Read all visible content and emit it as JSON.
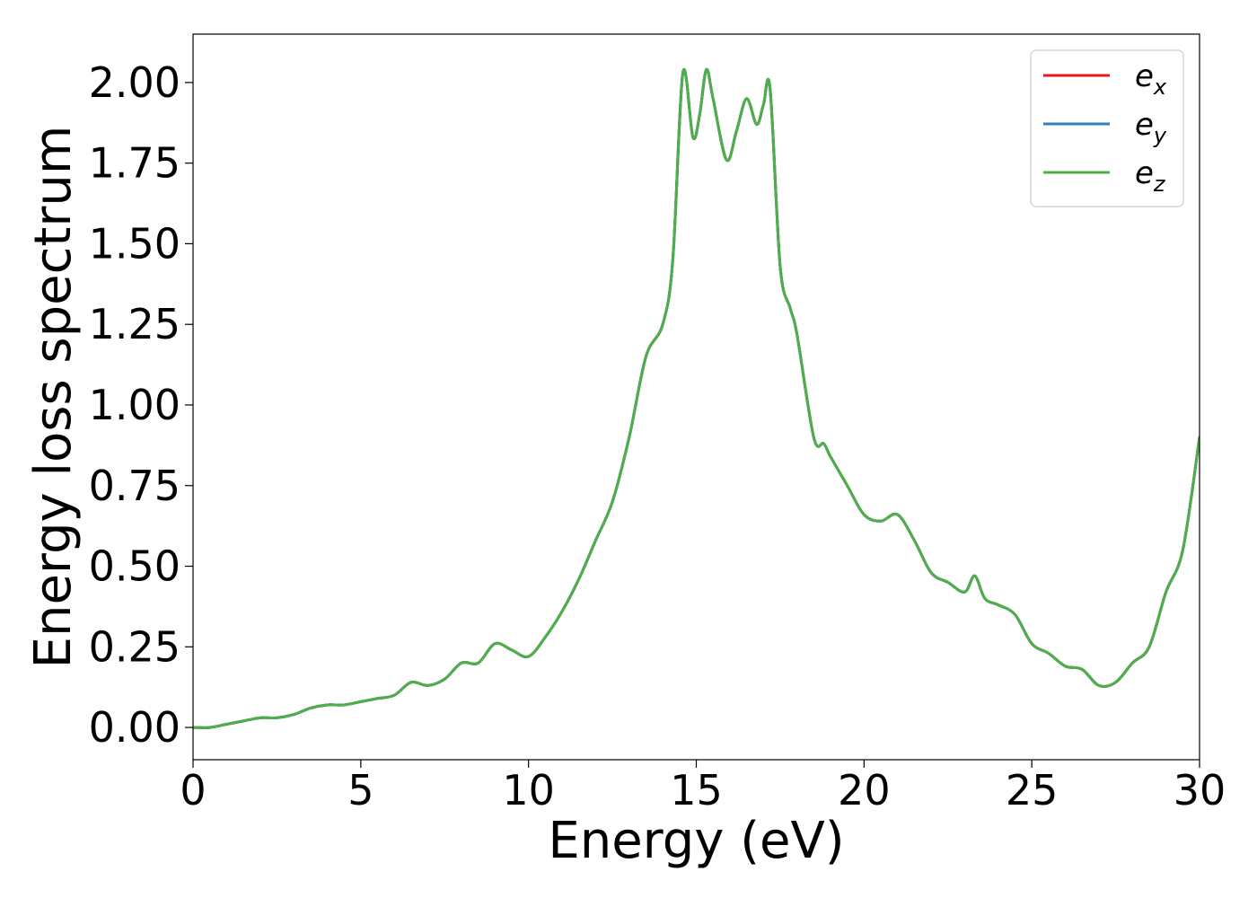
{
  "chart_data": {
    "type": "line",
    "title": "",
    "xlabel": "Energy (eV)",
    "ylabel": "Energy loss spectrum",
    "xlim": [
      0,
      30
    ],
    "ylim": [
      -0.1,
      2.15
    ],
    "xticks": [
      0,
      5,
      10,
      15,
      20,
      25,
      30
    ],
    "xtick_labels": [
      "0",
      "5",
      "10",
      "15",
      "20",
      "25",
      "30"
    ],
    "yticks": [
      0.0,
      0.25,
      0.5,
      0.75,
      1.0,
      1.25,
      1.5,
      1.75,
      2.0
    ],
    "ytick_labels": [
      "0.00",
      "0.25",
      "0.50",
      "0.75",
      "1.00",
      "1.25",
      "1.50",
      "1.75",
      "2.00"
    ],
    "grid": false,
    "legend_position": "top-right",
    "series": [
      {
        "name": "e",
        "subscript": "x",
        "color": "#e41a1c",
        "x": [
          0,
          0.5,
          1,
          1.5,
          2,
          2.5,
          3,
          3.5,
          4,
          4.5,
          5,
          5.5,
          6,
          6.5,
          7,
          7.5,
          8,
          8.5,
          9,
          9.5,
          10,
          10.5,
          11,
          11.5,
          12,
          12.5,
          13,
          13.5,
          14,
          14.3,
          14.6,
          14.9,
          15.1,
          15.3,
          15.5,
          15.9,
          16.2,
          16.5,
          16.8,
          17.0,
          17.2,
          17.5,
          17.8,
          18.0,
          18.5,
          18.8,
          19.0,
          19.5,
          20.0,
          20.5,
          21.0,
          21.5,
          22.0,
          22.5,
          23.0,
          23.3,
          23.6,
          24.0,
          24.5,
          25.0,
          25.5,
          26.0,
          26.5,
          27.0,
          27.5,
          28.0,
          28.5,
          29.0,
          29.5,
          30.0
        ],
        "y": [
          0.0,
          0.0,
          0.01,
          0.02,
          0.03,
          0.03,
          0.04,
          0.06,
          0.07,
          0.07,
          0.08,
          0.09,
          0.1,
          0.14,
          0.13,
          0.15,
          0.2,
          0.2,
          0.26,
          0.24,
          0.22,
          0.28,
          0.36,
          0.46,
          0.58,
          0.7,
          0.9,
          1.15,
          1.25,
          1.45,
          2.03,
          1.83,
          1.9,
          2.04,
          1.95,
          1.76,
          1.85,
          1.95,
          1.87,
          1.93,
          1.98,
          1.43,
          1.3,
          1.22,
          0.9,
          0.88,
          0.84,
          0.75,
          0.66,
          0.64,
          0.66,
          0.58,
          0.48,
          0.45,
          0.42,
          0.47,
          0.4,
          0.38,
          0.35,
          0.26,
          0.23,
          0.19,
          0.18,
          0.13,
          0.14,
          0.2,
          0.25,
          0.42,
          0.55,
          0.9
        ]
      },
      {
        "name": "e",
        "subscript": "y",
        "color": "#377eb8",
        "x": [
          0,
          0.5,
          1,
          1.5,
          2,
          2.5,
          3,
          3.5,
          4,
          4.5,
          5,
          5.5,
          6,
          6.5,
          7,
          7.5,
          8,
          8.5,
          9,
          9.5,
          10,
          10.5,
          11,
          11.5,
          12,
          12.5,
          13,
          13.5,
          14,
          14.3,
          14.6,
          14.9,
          15.1,
          15.3,
          15.5,
          15.9,
          16.2,
          16.5,
          16.8,
          17.0,
          17.2,
          17.5,
          17.8,
          18.0,
          18.5,
          18.8,
          19.0,
          19.5,
          20.0,
          20.5,
          21.0,
          21.5,
          22.0,
          22.5,
          23.0,
          23.3,
          23.6,
          24.0,
          24.5,
          25.0,
          25.5,
          26.0,
          26.5,
          27.0,
          27.5,
          28.0,
          28.5,
          29.0,
          29.5,
          30.0
        ],
        "y": [
          0.0,
          0.0,
          0.01,
          0.02,
          0.03,
          0.03,
          0.04,
          0.06,
          0.07,
          0.07,
          0.08,
          0.09,
          0.1,
          0.14,
          0.13,
          0.15,
          0.2,
          0.2,
          0.26,
          0.24,
          0.22,
          0.28,
          0.36,
          0.46,
          0.58,
          0.7,
          0.9,
          1.15,
          1.25,
          1.45,
          2.03,
          1.83,
          1.9,
          2.04,
          1.95,
          1.76,
          1.85,
          1.95,
          1.87,
          1.93,
          1.98,
          1.43,
          1.3,
          1.22,
          0.9,
          0.88,
          0.84,
          0.75,
          0.66,
          0.64,
          0.66,
          0.58,
          0.48,
          0.45,
          0.42,
          0.47,
          0.4,
          0.38,
          0.35,
          0.26,
          0.23,
          0.19,
          0.18,
          0.13,
          0.14,
          0.2,
          0.25,
          0.42,
          0.55,
          0.9
        ]
      },
      {
        "name": "e",
        "subscript": "z",
        "color": "#4daf4a",
        "x": [
          0,
          0.5,
          1,
          1.5,
          2,
          2.5,
          3,
          3.5,
          4,
          4.5,
          5,
          5.5,
          6,
          6.5,
          7,
          7.5,
          8,
          8.5,
          9,
          9.5,
          10,
          10.5,
          11,
          11.5,
          12,
          12.5,
          13,
          13.5,
          14,
          14.3,
          14.6,
          14.9,
          15.1,
          15.3,
          15.5,
          15.9,
          16.2,
          16.5,
          16.8,
          17.0,
          17.2,
          17.5,
          17.8,
          18.0,
          18.5,
          18.8,
          19.0,
          19.5,
          20.0,
          20.5,
          21.0,
          21.5,
          22.0,
          22.5,
          23.0,
          23.3,
          23.6,
          24.0,
          24.5,
          25.0,
          25.5,
          26.0,
          26.5,
          27.0,
          27.5,
          28.0,
          28.5,
          29.0,
          29.5,
          30.0
        ],
        "y": [
          0.0,
          0.0,
          0.01,
          0.02,
          0.03,
          0.03,
          0.04,
          0.06,
          0.07,
          0.07,
          0.08,
          0.09,
          0.1,
          0.14,
          0.13,
          0.15,
          0.2,
          0.2,
          0.26,
          0.24,
          0.22,
          0.28,
          0.36,
          0.46,
          0.58,
          0.7,
          0.9,
          1.15,
          1.25,
          1.45,
          2.03,
          1.83,
          1.9,
          2.04,
          1.95,
          1.76,
          1.85,
          1.95,
          1.87,
          1.93,
          1.98,
          1.43,
          1.3,
          1.22,
          0.9,
          0.88,
          0.84,
          0.75,
          0.66,
          0.64,
          0.66,
          0.58,
          0.48,
          0.45,
          0.42,
          0.47,
          0.4,
          0.38,
          0.35,
          0.26,
          0.23,
          0.19,
          0.18,
          0.13,
          0.14,
          0.2,
          0.25,
          0.42,
          0.55,
          0.9
        ]
      }
    ]
  }
}
